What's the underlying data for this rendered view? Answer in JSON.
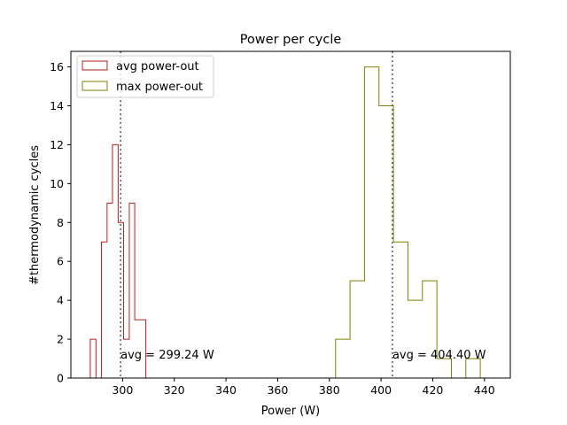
{
  "chart_data": {
    "type": "histogram",
    "title": "Power per cycle",
    "xlabel": "Power (W)",
    "ylabel": "#thermodynamic cycles",
    "xlim": [
      280,
      450
    ],
    "ylim": [
      0,
      16.8
    ],
    "xticks": [
      300,
      320,
      340,
      360,
      380,
      400,
      420,
      440
    ],
    "yticks": [
      0,
      2,
      4,
      6,
      8,
      10,
      12,
      14,
      16
    ],
    "grid": false,
    "legend_position": "upper left",
    "series": [
      {
        "name": "avg power-out",
        "color": "#b22222",
        "bin_edges": [
          287.5,
          289.7,
          291.8,
          294.0,
          296.1,
          298.3,
          300.4,
          302.6,
          304.7,
          306.9,
          309.0,
          311.2
        ],
        "counts": [
          2,
          0,
          7,
          9,
          12,
          8,
          2,
          9,
          3,
          3,
          0
        ]
      },
      {
        "name": "max power-out",
        "color": "#808000",
        "bin_edges": [
          382.4,
          388.0,
          393.6,
          399.2,
          404.8,
          410.4,
          416.0,
          421.6,
          427.2,
          432.8,
          438.4,
          444.0
        ],
        "counts": [
          2,
          5,
          16,
          14,
          7,
          4,
          5,
          1,
          0,
          1,
          0
        ]
      }
    ],
    "annotations": [
      {
        "x": 299.24,
        "label": "avg = 299.24 W",
        "label_y": 1.2
      },
      {
        "x": 404.4,
        "label": "avg = 404.40 W",
        "label_y": 1.2
      }
    ]
  }
}
